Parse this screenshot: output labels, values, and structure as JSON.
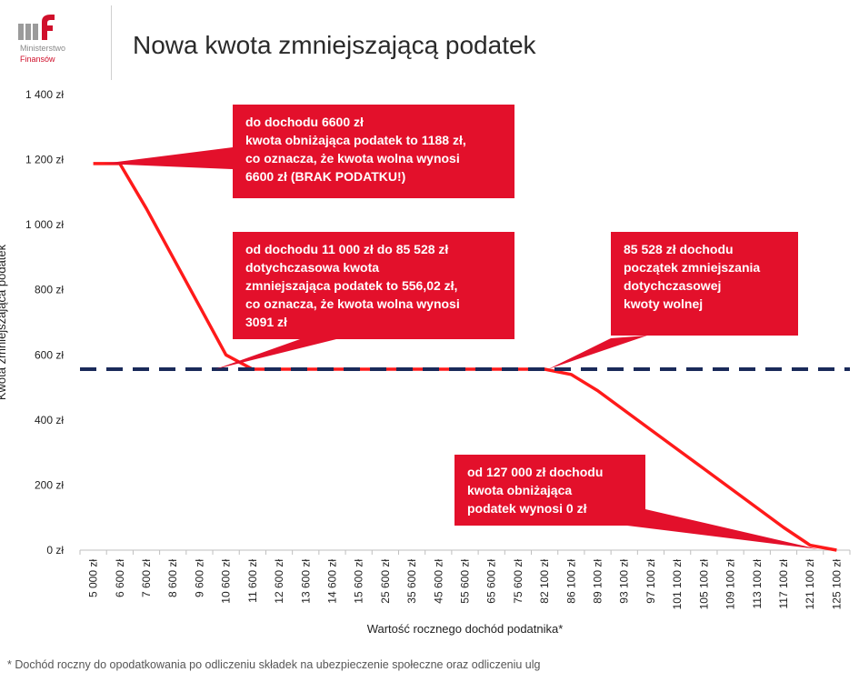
{
  "header": {
    "logo_line1": "Ministerstwo",
    "logo_line2": "Finansów",
    "title": "Nowa kwota zmniejszającą podatek"
  },
  "colors": {
    "accent_red": "#e3102b",
    "line_red": "#ff1a1a",
    "dashed_navy": "#1a2a5a",
    "logo_gray": "#8a8a8a"
  },
  "chart_data": {
    "type": "line",
    "xlabel": "Wartość rocznego dochód podatnika*",
    "ylabel": "Kwota zmniejszająca podatek",
    "ylim": [
      0,
      1400
    ],
    "yticks": [
      "0 zł",
      "200 zł",
      "400 zł",
      "600 zł",
      "800 zł",
      "1 000 zł",
      "1 200 zł",
      "1 400 zł"
    ],
    "categories": [
      "5 000 zł",
      "6 600 zł",
      "7 600 zł",
      "8 600 zł",
      "9 600 zł",
      "10 600 zł",
      "11 600 zł",
      "12 600 zł",
      "13 600 zł",
      "14 600 zł",
      "15 600 zł",
      "25 600 zł",
      "35 600 zł",
      "45 600 zł",
      "55 600 zł",
      "65 600 zł",
      "75 600 zł",
      "82 100 zł",
      "86 100 zł",
      "89 100 zł",
      "93 100 zł",
      "97 100 zł",
      "101 100 zł",
      "105 100 zł",
      "109 100 zł",
      "113 100 zł",
      "117 100 zł",
      "121 100 zł",
      "125 100 zł"
    ],
    "series": [
      {
        "values": [
          1188,
          1188,
          1050,
          900,
          750,
          600,
          556,
          556,
          556,
          556,
          556,
          556,
          556,
          556,
          556,
          556,
          556,
          556,
          540,
          490,
          430,
          370,
          310,
          250,
          190,
          130,
          70,
          15,
          0
        ],
        "color": "#ff1a1a",
        "style": "solid"
      },
      {
        "values": [
          556.02,
          556.02,
          556.02,
          556.02,
          556.02,
          556.02,
          556.02,
          556.02,
          556.02,
          556.02,
          556.02,
          556.02,
          556.02,
          556.02,
          556.02,
          556.02,
          556.02,
          556.02,
          556.02,
          556.02,
          556.02,
          556.02,
          556.02,
          556.02,
          556.02,
          556.02,
          556.02,
          556.02,
          556.02
        ],
        "color": "#1a2a5a",
        "style": "dashed"
      }
    ],
    "grid": false,
    "annotations": [
      {
        "lines": [
          "do dochodu 6600 zł",
          "kwota obniżająca podatek to 1188 zł,",
          "co oznacza, że kwota wolna wynosi",
          "6600 zł (BRAK PODATKU!)"
        ]
      },
      {
        "lines": [
          "od dochodu 11 000 zł  do 85 528 zł",
          "dotychczasowa kwota",
          "zmniejszająca podatek to 556,02 zł,",
          "co oznacza, że kwota wolna wynosi",
          "3091 zł"
        ]
      },
      {
        "lines": [
          "85 528 zł dochodu",
          "początek zmniejszania",
          "dotychczasowej",
          "kwoty wolnej"
        ]
      },
      {
        "lines": [
          "od 127 000 zł dochodu",
          "kwota obniżająca",
          "podatek wynosi 0 zł"
        ]
      }
    ]
  },
  "footnote": "* Dochód roczny do opodatkowania po odliczeniu składek na ubezpieczenie społeczne oraz odliczeniu ulg"
}
